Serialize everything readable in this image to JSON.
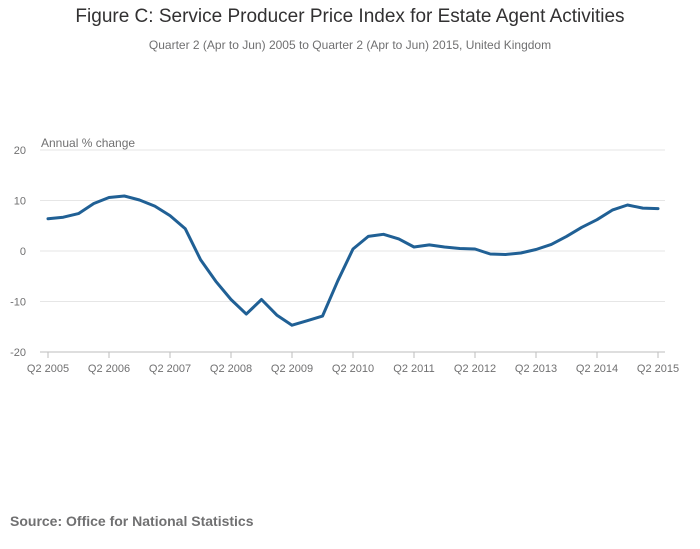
{
  "chart_data": {
    "type": "line",
    "title": "Figure C: Service Producer Price Index for Estate Agent Activities",
    "subtitle": "Quarter 2 (Apr to Jun) 2005 to Quarter 2 (Apr to Jun) 2015, United Kingdom",
    "ylabel": "Annual % change",
    "xlabel": "",
    "ylim": [
      -20,
      20
    ],
    "yticks": [
      20,
      10,
      0,
      -10,
      -20
    ],
    "xticks": [
      "Q2 2005",
      "Q2 2006",
      "Q2 2007",
      "Q2 2008",
      "Q2 2009",
      "Q2 2010",
      "Q2 2011",
      "Q2 2012",
      "Q2 2013",
      "Q2 2014",
      "Q2 2015"
    ],
    "grid": true,
    "color": "#206095",
    "series": [
      {
        "name": "Annual % change",
        "values": [
          6.4,
          6.7,
          7.4,
          9.4,
          10.6,
          10.9,
          10.1,
          8.9,
          7.0,
          4.4,
          -1.7,
          -6.0,
          -9.6,
          -12.5,
          -9.6,
          -12.7,
          -14.7,
          -13.8,
          -12.9,
          -5.9,
          0.4,
          2.9,
          3.3,
          2.4,
          0.8,
          1.2,
          0.8,
          0.5,
          0.4,
          -0.6,
          -0.7,
          -0.4,
          0.3,
          1.3,
          2.9,
          4.7,
          6.2,
          8.1,
          9.1,
          8.5,
          8.4
        ]
      }
    ]
  },
  "source": "Source: Office for National Statistics"
}
